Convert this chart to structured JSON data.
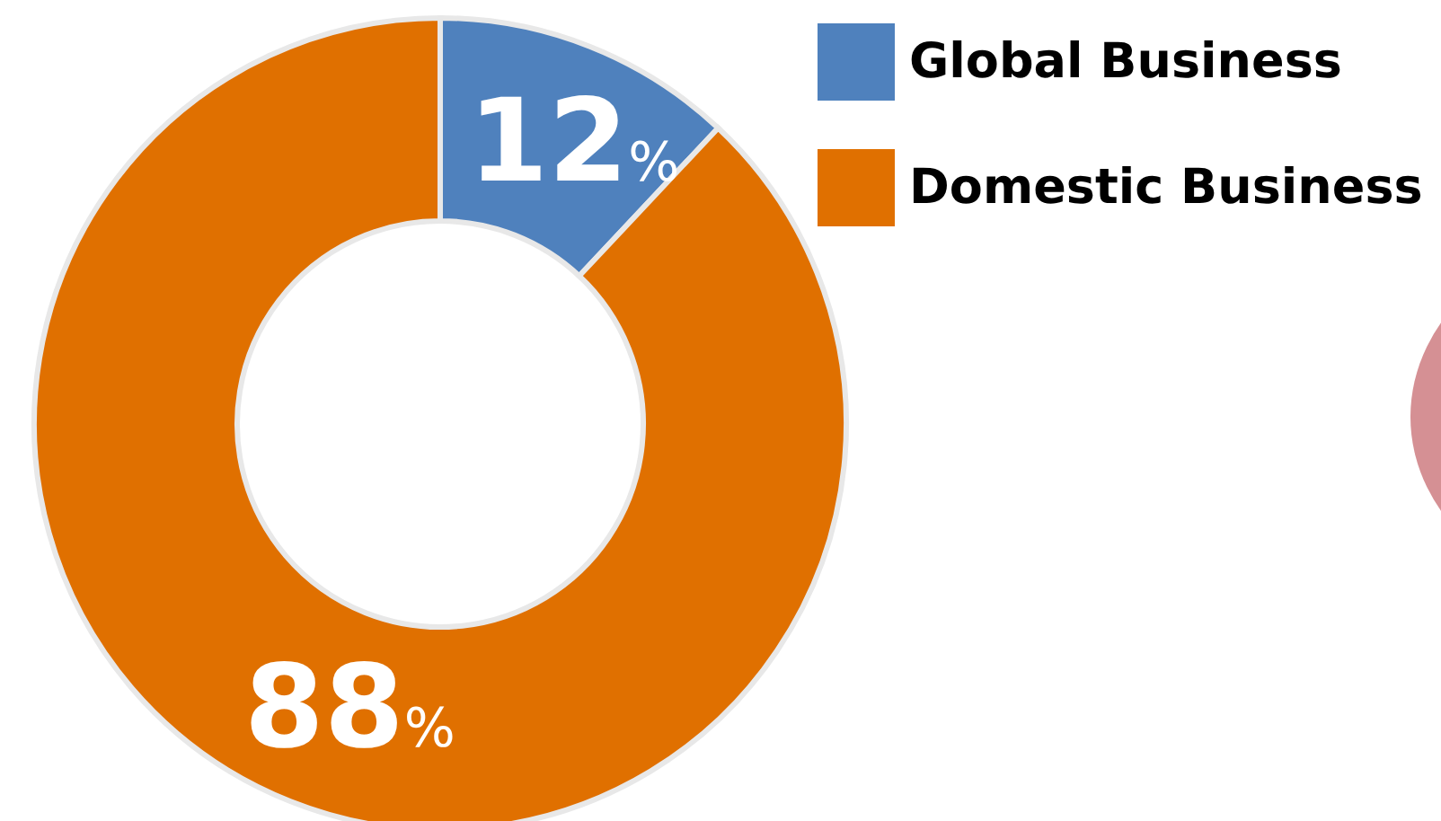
{
  "chart_data": {
    "type": "donut",
    "categories": [
      "Global Business",
      "Domestic Business"
    ],
    "values": [
      12,
      88
    ],
    "colors": [
      "#4f81bd",
      "#e07000"
    ],
    "value_labels": [
      "12%",
      "88%"
    ],
    "legend": "top right"
  }
}
